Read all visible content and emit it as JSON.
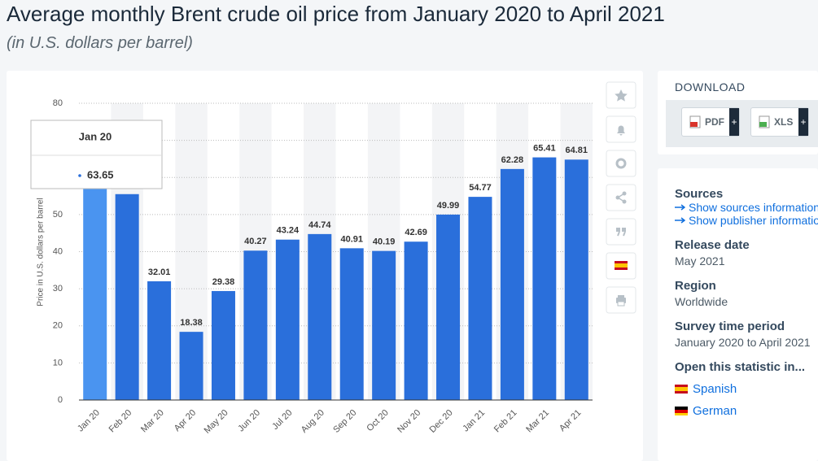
{
  "chart_data": {
    "type": "bar",
    "title": "Average monthly Brent crude oil price from January 2020 to April 2021",
    "subtitle": "(in U.S. dollars per barrel)",
    "y_label": "Price in U.S. dollars per barrel",
    "categories": [
      "Jan 20",
      "Feb 20",
      "Mar 20",
      "Apr 20",
      "May 20",
      "Jun 20",
      "Jul 20",
      "Aug 20",
      "Sep 20",
      "Oct 20",
      "Nov 20",
      "Dec 20",
      "Jan 21",
      "Feb 21",
      "Mar 21",
      "Apr 21"
    ],
    "values": [
      63.65,
      55.5,
      32.01,
      18.38,
      29.38,
      40.27,
      43.24,
      44.74,
      40.91,
      40.19,
      42.69,
      49.99,
      54.77,
      62.28,
      65.41,
      64.81
    ],
    "color": "#2a6fdb",
    "highlight_color": "#4a94f0",
    "ylim": [
      0,
      80
    ],
    "yticks": [
      0,
      10,
      20,
      30,
      40,
      50,
      60,
      70,
      80
    ],
    "grid": true
  },
  "download": {
    "title": "DOWNLOAD",
    "buttons": [
      "PDF",
      "XLS"
    ]
  },
  "details": {
    "sources": {
      "title": "Sources",
      "links": [
        "Show sources information",
        "Show publisher information"
      ]
    },
    "release_date": {
      "title": "Release date",
      "value": "May 2021"
    },
    "region": {
      "title": "Region",
      "value": "Worldwide"
    },
    "survey_period": {
      "title": "Survey time period",
      "value": "January 2020 to April 2021"
    },
    "open_in": {
      "title": "Open this statistic in...",
      "languages": [
        "Spanish",
        "German"
      ]
    }
  }
}
